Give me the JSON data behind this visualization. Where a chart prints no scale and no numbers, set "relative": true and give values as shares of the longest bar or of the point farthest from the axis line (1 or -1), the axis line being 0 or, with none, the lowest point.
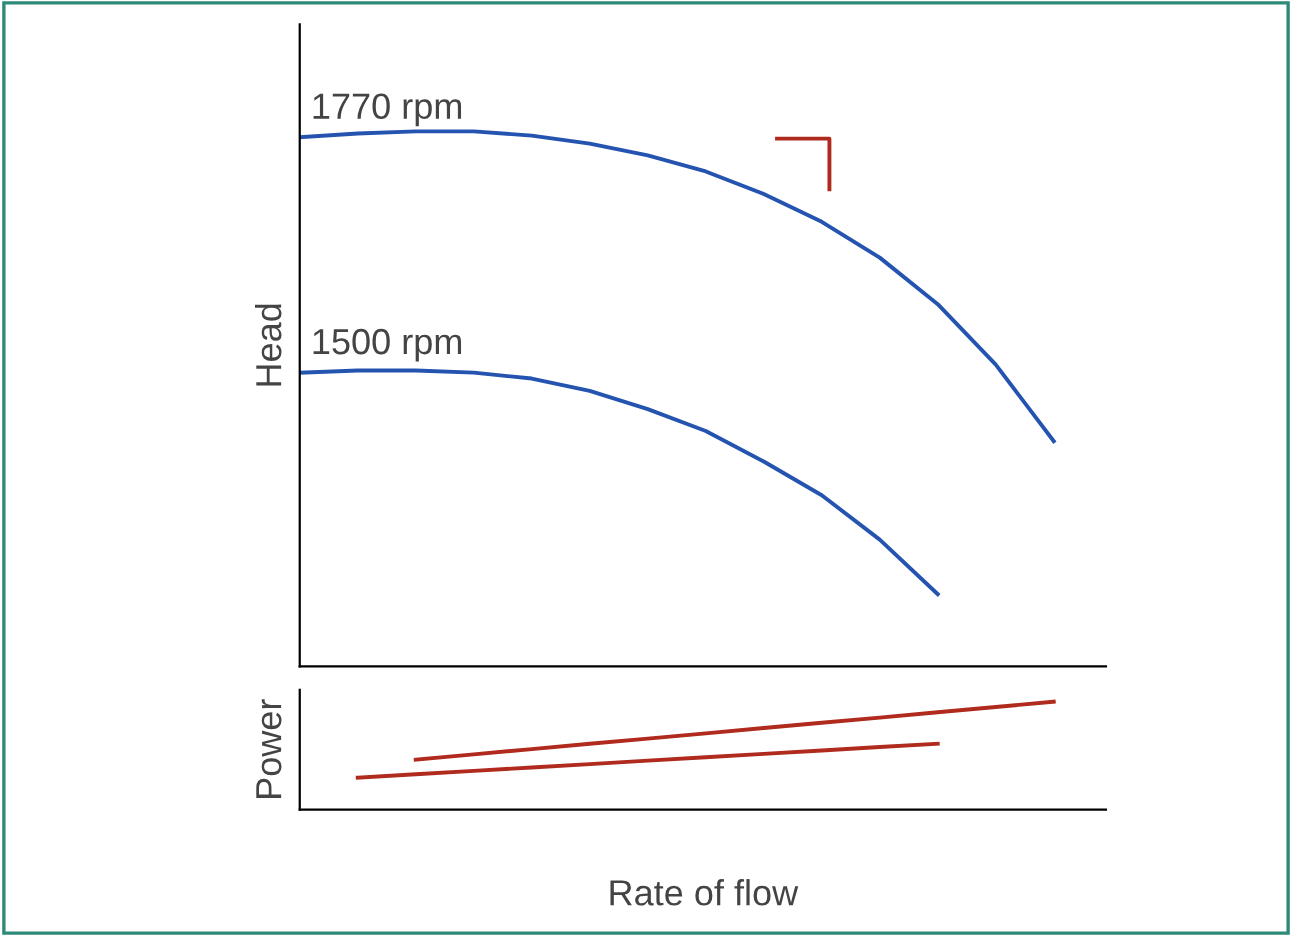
{
  "chart_data": [
    {
      "type": "line",
      "ylabel": "Head",
      "relative": true,
      "tick_labels": false,
      "marker": "none",
      "line_style": "solid",
      "categories": [
        null,
        null,
        null,
        null,
        null,
        null,
        null,
        null,
        null,
        null,
        null,
        null,
        null,
        null
      ],
      "series": [
        {
          "name": "1770 rpm",
          "color": "#2454b0",
          "values": [
            0.989,
            0.996,
            1.0,
            1.0,
            0.992,
            0.977,
            0.955,
            0.925,
            0.883,
            0.831,
            0.764,
            0.677,
            0.564,
            0.421
          ]
        },
        {
          "name": "1500 rpm",
          "color": "#2454b0",
          "values": [
            0.549,
            0.553,
            0.553,
            0.549,
            0.538,
            0.515,
            0.481,
            0.44,
            0.383,
            0.32,
            0.237,
            0.135,
            null,
            null
          ]
        }
      ]
    },
    {
      "type": "line",
      "ylabel": "Power",
      "xlabel": "Rate of flow",
      "relative": true,
      "tick_labels": false,
      "marker": "none",
      "line_style": "solid",
      "categories": [
        null,
        null,
        null,
        null,
        null,
        null,
        null,
        null,
        null,
        null,
        null,
        null,
        null,
        null
      ],
      "series": [
        {
          "color": "#b02a1e",
          "values": [
            null,
            null,
            0.463,
            0.512,
            0.561,
            0.61,
            0.658,
            0.707,
            0.756,
            0.805,
            0.853,
            0.902,
            0.951,
            1.0
          ]
        },
        {
          "color": "#b02a1e",
          "values": [
            null,
            0.296,
            0.328,
            0.359,
            0.391,
            0.422,
            0.454,
            0.485,
            0.517,
            0.548,
            0.58,
            0.611,
            null,
            null
          ]
        }
      ]
    }
  ]
}
